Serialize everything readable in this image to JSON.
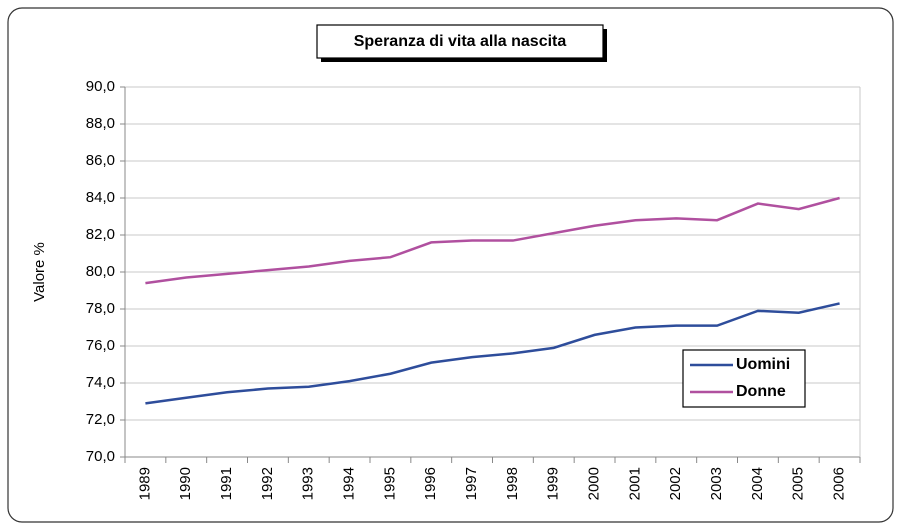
{
  "chart_data": {
    "type": "line",
    "title": "Speranza di vita alla nascita",
    "y_label": "Valore %",
    "categories": [
      "1989",
      "1990",
      "1991",
      "1992",
      "1993",
      "1994",
      "1995",
      "1996",
      "1997",
      "1998",
      "1999",
      "2000",
      "2001",
      "2002",
      "2003",
      "2004",
      "2005",
      "2006"
    ],
    "series": [
      {
        "name": "Uomini",
        "color": "#2e4d9b",
        "values": [
          72.9,
          73.2,
          73.5,
          73.7,
          73.8,
          74.1,
          74.5,
          75.1,
          75.4,
          75.6,
          75.9,
          76.6,
          77.0,
          77.1,
          77.1,
          77.9,
          77.8,
          78.3
        ]
      },
      {
        "name": "Donne",
        "color": "#b0509f",
        "values": [
          79.4,
          79.7,
          79.9,
          80.1,
          80.3,
          80.6,
          80.8,
          81.6,
          81.7,
          81.7,
          82.1,
          82.5,
          82.8,
          82.9,
          82.8,
          83.7,
          83.4,
          84.0
        ]
      }
    ],
    "ylim": [
      70,
      90
    ],
    "yticks": [
      {
        "value": 70,
        "label": "70,0"
      },
      {
        "value": 72,
        "label": "72,0"
      },
      {
        "value": 74,
        "label": "74,0"
      },
      {
        "value": 76,
        "label": "76,0"
      },
      {
        "value": 78,
        "label": "78,0"
      },
      {
        "value": 80,
        "label": "80,0"
      },
      {
        "value": 82,
        "label": "82,0"
      },
      {
        "value": 84,
        "label": "84,0"
      },
      {
        "value": 86,
        "label": "86,0"
      },
      {
        "value": 88,
        "label": "88,0"
      },
      {
        "value": 90,
        "label": "90,0"
      }
    ],
    "grid": true
  }
}
